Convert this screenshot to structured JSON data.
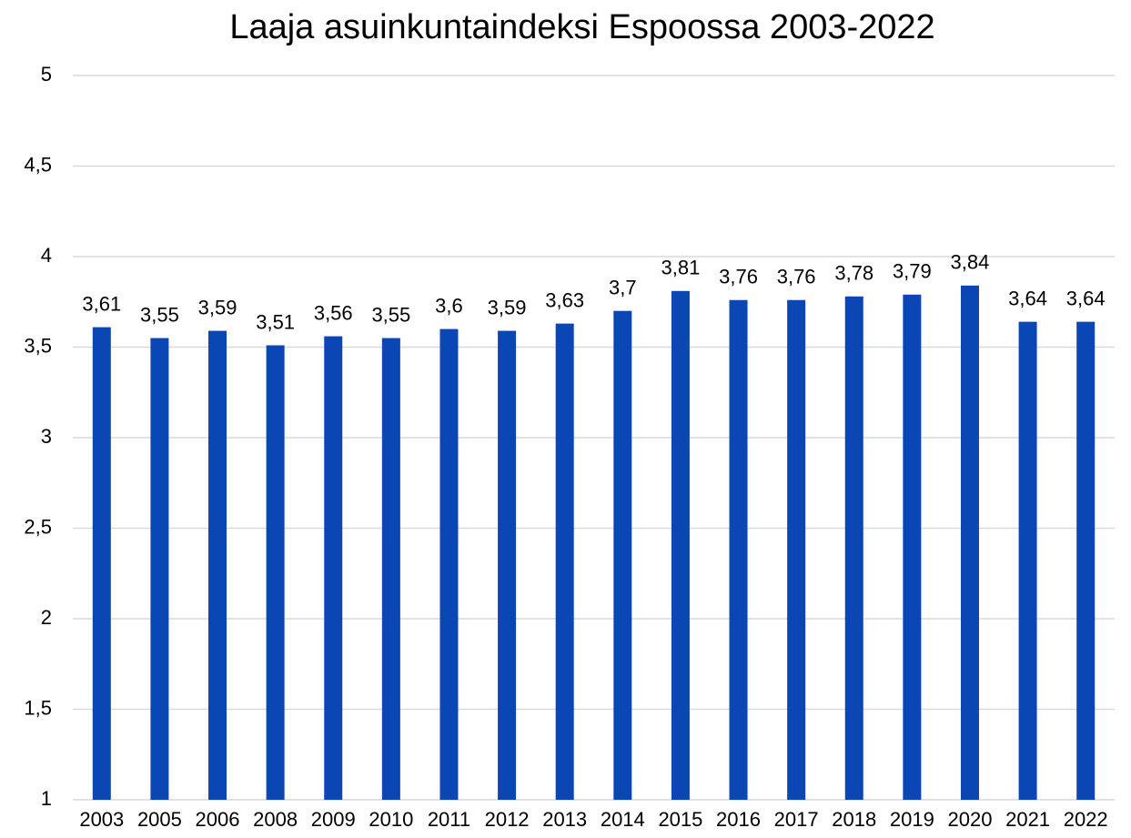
{
  "chart_data": {
    "type": "bar",
    "title": "Laaja asuinkuntaindeksi Espoossa 2003-2022",
    "categories": [
      "2003",
      "2005",
      "2006",
      "2008",
      "2009",
      "2010",
      "2011",
      "2012",
      "2013",
      "2014",
      "2015",
      "2016",
      "2017",
      "2018",
      "2019",
      "2020",
      "2021",
      "2022"
    ],
    "values": [
      3.61,
      3.55,
      3.59,
      3.51,
      3.56,
      3.55,
      3.6,
      3.59,
      3.63,
      3.7,
      3.81,
      3.76,
      3.76,
      3.78,
      3.79,
      3.84,
      3.64,
      3.64
    ],
    "value_labels": [
      "3,61",
      "3,55",
      "3,59",
      "3,51",
      "3,56",
      "3,55",
      "3,6",
      "3,59",
      "3,63",
      "3,7",
      "3,81",
      "3,76",
      "3,76",
      "3,78",
      "3,79",
      "3,84",
      "3,64",
      "3,64"
    ],
    "color": "#0a47b5",
    "ylim": [
      1,
      5
    ],
    "yticks": [
      1,
      {
        "value": 1.5,
        "label": "1,5"
      },
      2,
      {
        "value": 2.5,
        "label": "2,5"
      },
      3,
      {
        "value": 3.5,
        "label": "3,5"
      },
      4,
      {
        "value": 4.5,
        "label": "4,5"
      },
      5
    ],
    "grid": true
  }
}
